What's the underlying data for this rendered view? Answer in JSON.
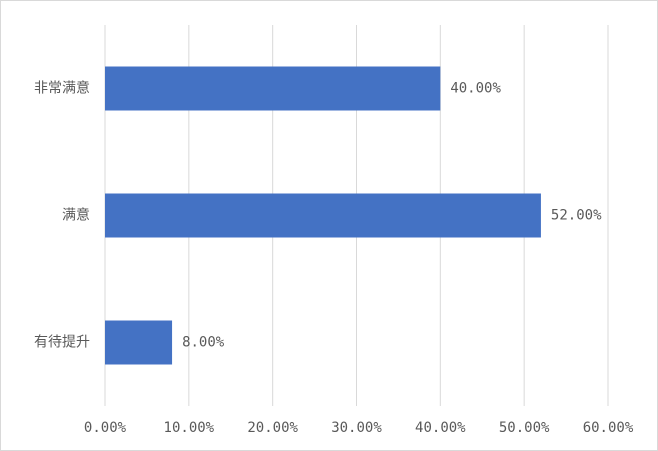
{
  "chart_data": {
    "type": "hbar",
    "categories": [
      "非常满意",
      "满意",
      "有待提升"
    ],
    "values": [
      40,
      52,
      8
    ],
    "value_labels": [
      "40.00%",
      "52.00%",
      "8.00%"
    ],
    "color": "#4472c4",
    "xlim": [
      0,
      60
    ],
    "xticks": [
      {
        "value": 0,
        "label": "0.00%"
      },
      {
        "value": 10,
        "label": "10.00%"
      },
      {
        "value": 20,
        "label": "20.00%"
      },
      {
        "value": 30,
        "label": "30.00%"
      },
      {
        "value": 40,
        "label": "40.00%"
      },
      {
        "value": 50,
        "label": "50.00%"
      },
      {
        "value": 60,
        "label": "60.00%"
      }
    ],
    "grid": true
  }
}
